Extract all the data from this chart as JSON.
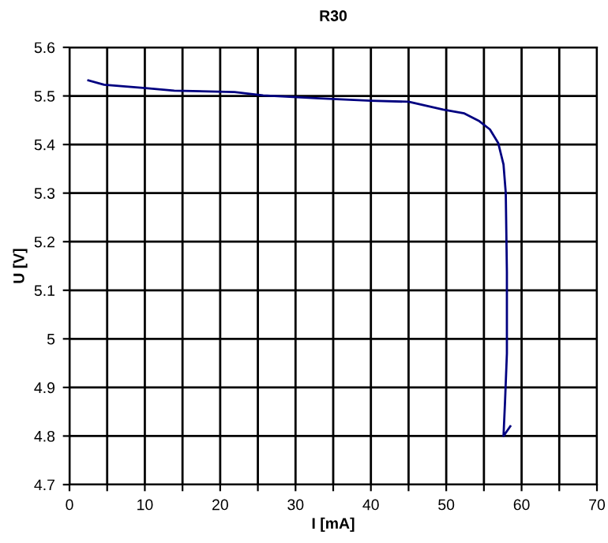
{
  "chart_data": {
    "type": "line",
    "title": "R30",
    "xlabel": "I [mA]",
    "ylabel": "U [V]",
    "series": [
      {
        "color": "#000080",
        "x": [
          2.5,
          4.6,
          10.1,
          13.9,
          21.9,
          25.7,
          33.2,
          40,
          45,
          49.6,
          52.4,
          54.4,
          55.8,
          56.9,
          57.6,
          57.9,
          58.05,
          58.05,
          57.8,
          57.6,
          58.5
        ],
        "values": [
          5.532,
          5.523,
          5.516,
          5.511,
          5.508,
          5.501,
          5.495,
          5.49,
          5.488,
          5.472,
          5.464,
          5.448,
          5.431,
          5.403,
          5.359,
          5.3,
          5.137,
          4.97,
          4.87,
          4.8,
          4.82
        ]
      }
    ],
    "xlim": [
      0,
      70
    ],
    "ylim": [
      4.7,
      5.6
    ],
    "xticks": [
      0,
      {
        "value": 5,
        "label": null
      },
      10,
      {
        "value": 15,
        "label": null
      },
      20,
      {
        "value": 25,
        "label": null
      },
      30,
      {
        "value": 35,
        "label": null
      },
      40,
      {
        "value": 45,
        "label": null
      },
      50,
      {
        "value": 55,
        "label": null
      },
      60,
      {
        "value": 65,
        "label": null
      },
      70
    ],
    "yticks": [
      4.7,
      4.8,
      4.9,
      5,
      5.1,
      5.2,
      5.3,
      5.4,
      5.5,
      5.6
    ],
    "grid": true,
    "legend": false,
    "marker": "none",
    "line_style": "solid"
  }
}
